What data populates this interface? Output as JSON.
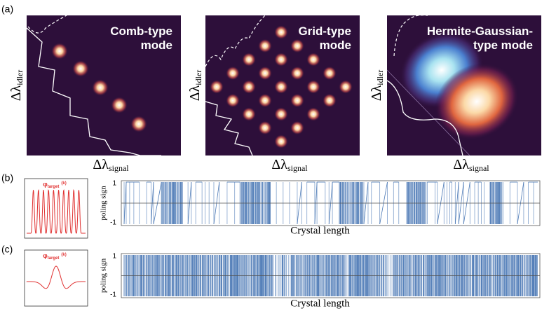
{
  "figure": {
    "panel_a": {
      "label": "(a)",
      "panels": [
        {
          "title_lines": [
            "Comb-type",
            "mode"
          ]
        },
        {
          "title_lines": [
            "Grid-type",
            "mode"
          ]
        },
        {
          "title_lines": [
            "Hermite-Gaussian-",
            "type mode"
          ]
        }
      ],
      "x_label": {
        "base": "Δλ",
        "sub": "signal"
      },
      "y_label": {
        "base": "Δλ",
        "sub": "idler"
      }
    },
    "panel_b": {
      "label": "(b)",
      "inset_label": {
        "base": "φ",
        "sub": "target",
        "sup": "(k)"
      },
      "y_label": "poling  sign",
      "yticks": [
        1,
        -1
      ],
      "x_label": "Crystal length"
    },
    "panel_c": {
      "label": "(c)",
      "inset_label": {
        "base": "φ",
        "sub": "target",
        "sup": "(k)"
      },
      "y_label": "poling  sign",
      "yticks": [
        1,
        -1
      ],
      "x_label": "Crystal length"
    }
  }
}
